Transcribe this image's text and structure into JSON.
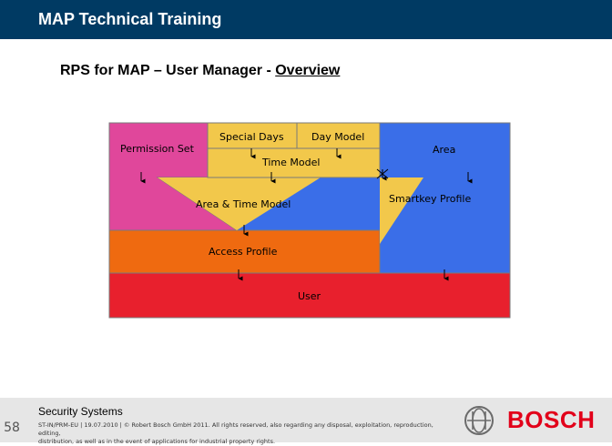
{
  "header": {
    "title": "MAP Technical Training"
  },
  "slide": {
    "title_prefix": "RPS for MAP – User Manager - ",
    "title_underlined": "Overview"
  },
  "diagram": {
    "labels": {
      "permission_set": "Permission Set",
      "special_days": "Special Days",
      "day_model": "Day Model",
      "area": "Area",
      "time_model": "Time Model",
      "area_time_model": "Area & Time Model",
      "smartkey_profile": "Smartkey Profile",
      "access_profile": "Access Profile",
      "user": "User"
    },
    "colors": {
      "magenta": "#e0479b",
      "yellow": "#f2c84b",
      "blue": "#3a6ee8",
      "orange": "#ef6a10",
      "red": "#e8202d",
      "border": "#7a7a7a"
    }
  },
  "footer": {
    "unit": "Security Systems",
    "page_number": "58",
    "legal_line1": "ST-IN/PRM-EU | 19.07.2010 | © Robert Bosch GmbH 2011. All rights reserved, also regarding any disposal, exploitation, reproduction, editing,",
    "legal_line2": "distribution, as well as in the event of applications for industrial property rights.",
    "brand": "BOSCH",
    "brand_color": "#e2001a"
  }
}
